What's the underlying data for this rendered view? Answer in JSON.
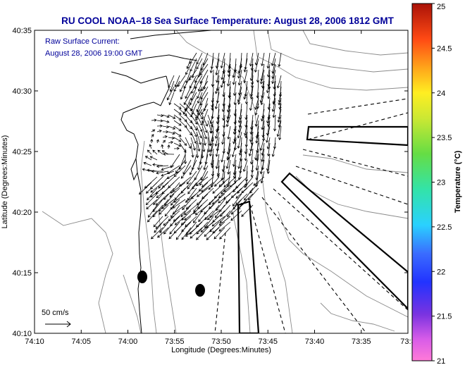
{
  "chart_data": {
    "type": "vector-field",
    "title": "RU COOL  NOAA–18  Sea Surface Temperature:  August 28, 2006 1812 GMT",
    "xlabel": "Longitude (Degrees:Minutes)",
    "ylabel": "Latitude (Degrees:Minutes)",
    "x_axis": {
      "range_minutes_west": [
        10,
        33
      ],
      "ticks": [
        {
          "value": 10,
          "label": "74:10"
        },
        {
          "value": 5,
          "label": "74:05"
        },
        {
          "value": 0,
          "label": "74:00"
        },
        {
          "value": -5,
          "label": "73:55"
        },
        {
          "value": -10,
          "label": "73:50"
        },
        {
          "value": -15,
          "label": "73:45"
        },
        {
          "value": -20,
          "label": "73:40"
        },
        {
          "value": -25,
          "label": "73:35"
        },
        {
          "value": -30,
          "label": "73:3"
        }
      ]
    },
    "y_axis": {
      "ticks": [
        {
          "value": 35,
          "label": "40:35"
        },
        {
          "value": 30,
          "label": "40:30"
        },
        {
          "value": 25,
          "label": "40:25"
        },
        {
          "value": 20,
          "label": "40:20"
        },
        {
          "value": 15,
          "label": "40:15"
        },
        {
          "value": 10,
          "label": "40:10"
        }
      ]
    },
    "annotation": {
      "line1": "Raw Surface Current:",
      "line2": "August 28, 2006 19:00 GMT"
    },
    "scale_label": "50 cm/s",
    "colorbar": {
      "label": "Temperature (°C)",
      "range": [
        21,
        25
      ],
      "ticks": [
        "25",
        "24.5",
        "24",
        "23.5",
        "23",
        "22.5",
        "22",
        "21.5",
        "21"
      ]
    },
    "grid": false,
    "colors": {
      "title": "#000099",
      "annotation": "#000099",
      "axis": "#000000",
      "contour": "#888888",
      "vector": "#000000"
    }
  }
}
